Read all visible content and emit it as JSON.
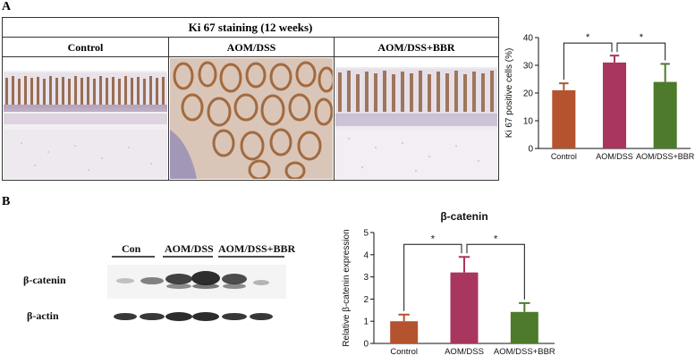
{
  "figure": {
    "panel_a_letter": "A",
    "panel_b_letter": "B"
  },
  "staining": {
    "title": "Ki 67 staining (12 weeks)",
    "columns": [
      "Control",
      "AOM/DSS",
      "AOM/DSS+BBR"
    ]
  },
  "blot": {
    "group_labels": [
      "Con",
      "AOM/DSS",
      "AOM/DSS+BBR"
    ],
    "row_labels": [
      "β-catenin",
      "β-actin"
    ]
  },
  "chart_data": [
    {
      "type": "bar",
      "title": "",
      "xlabel": "",
      "ylabel": "Ki 67 positive cells (%)",
      "categories": [
        "Control",
        "AOM/DSS",
        "AOM/DSS+BBR"
      ],
      "values": [
        21,
        31,
        24
      ],
      "errors": [
        2.5,
        2.5,
        6.5
      ],
      "ylim": [
        0,
        40
      ],
      "yticks": [
        0,
        10,
        20,
        30,
        40
      ],
      "colors": [
        "#b5532f",
        "#a8365e",
        "#4e7a2b"
      ],
      "significance": [
        "*",
        "*"
      ]
    },
    {
      "type": "bar",
      "title": "β-catenin",
      "xlabel": "",
      "ylabel": "Relative β-catenin expression",
      "categories": [
        "Control",
        "AOM/DSS",
        "AOM/DSS+BBR"
      ],
      "values": [
        1.0,
        3.2,
        1.42
      ],
      "errors": [
        0.3,
        0.7,
        0.4
      ],
      "ylim": [
        0,
        5
      ],
      "yticks": [
        0,
        1,
        2,
        3,
        4,
        5
      ],
      "colors": [
        "#b5532f",
        "#a8365e",
        "#4e7a2b"
      ],
      "significance": [
        "*",
        "*"
      ]
    }
  ]
}
